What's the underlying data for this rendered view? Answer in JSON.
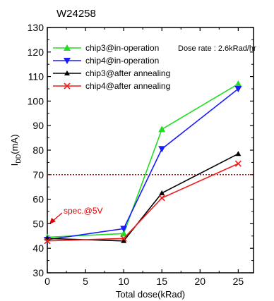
{
  "chart_data": {
    "type": "line",
    "title": "W24258",
    "xlabel": "Total dose(kRad)",
    "ylabel_main": "I",
    "ylabel_sub": "DD",
    "ylabel_unit": "(mA)",
    "xlim": [
      0,
      27
    ],
    "ylim": [
      30,
      130
    ],
    "xticks": [
      0,
      5,
      10,
      15,
      20,
      25
    ],
    "yticks": [
      30,
      40,
      50,
      60,
      70,
      80,
      90,
      100,
      110,
      120,
      130
    ],
    "grid": false,
    "legend_position": "top-left",
    "annotation": "Dose rate : 2.6kRad/hr",
    "spec_label": "spec.@5V",
    "spec_value": 70,
    "spec_color": "#e00000",
    "series": [
      {
        "name": "chip3@in-operation",
        "color": "#22dd22",
        "marker": "triangle-up",
        "x": [
          0,
          10,
          15,
          25
        ],
        "y": [
          44.5,
          46,
          88.5,
          107
        ]
      },
      {
        "name": "chip4@in-operation",
        "color": "#1a1aff",
        "marker": "triangle-down",
        "x": [
          0,
          10,
          15,
          25
        ],
        "y": [
          43.5,
          48,
          80.5,
          105
        ]
      },
      {
        "name": "chip3@after annealing",
        "color": "#000000",
        "marker": "triangle-up-small",
        "x": [
          0,
          10,
          15,
          25
        ],
        "y": [
          44,
          43,
          62.5,
          78.5
        ]
      },
      {
        "name": "chip4@after annealing",
        "color": "#ee1c1c",
        "marker": "x",
        "x": [
          0,
          10,
          15,
          25
        ],
        "y": [
          43,
          44,
          60.5,
          74.5
        ]
      }
    ]
  }
}
